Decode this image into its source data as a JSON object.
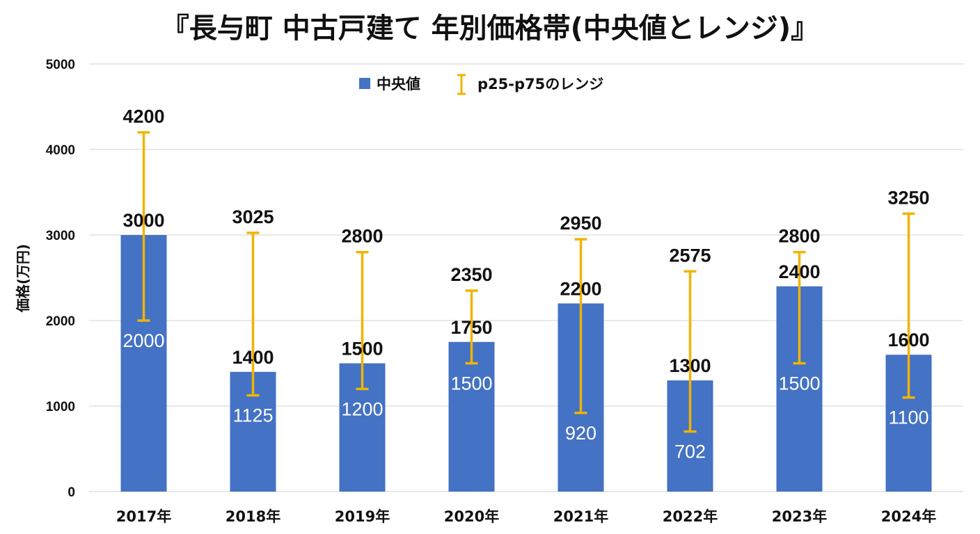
{
  "colors": {
    "bar": "#4472c4",
    "range": "#f0b400",
    "grid": "#d9d9d9"
  },
  "chart_data": {
    "type": "bar",
    "title": "『長与町 中古戸建て 年別価格帯(中央値とレンジ)』",
    "xlabel": "",
    "ylabel": "価格(万円)",
    "ylim": [
      0,
      5000
    ],
    "yticks": [
      0,
      1000,
      2000,
      3000,
      4000,
      5000
    ],
    "grid": true,
    "legend_position": "top-center",
    "categories": [
      "2017年",
      "2018年",
      "2019年",
      "2020年",
      "2021年",
      "2022年",
      "2023年",
      "2024年"
    ],
    "series": [
      {
        "name": "中央値",
        "type": "bar",
        "values": [
          3000,
          1400,
          1500,
          1750,
          2200,
          1300,
          2400,
          1600
        ]
      },
      {
        "name": "p25-p75のレンジ",
        "type": "errorbar",
        "low": [
          2000,
          1125,
          1200,
          1500,
          920,
          702,
          1500,
          1100
        ],
        "high": [
          4200,
          3025,
          2800,
          2350,
          2950,
          2575,
          2800,
          3250
        ]
      }
    ]
  }
}
